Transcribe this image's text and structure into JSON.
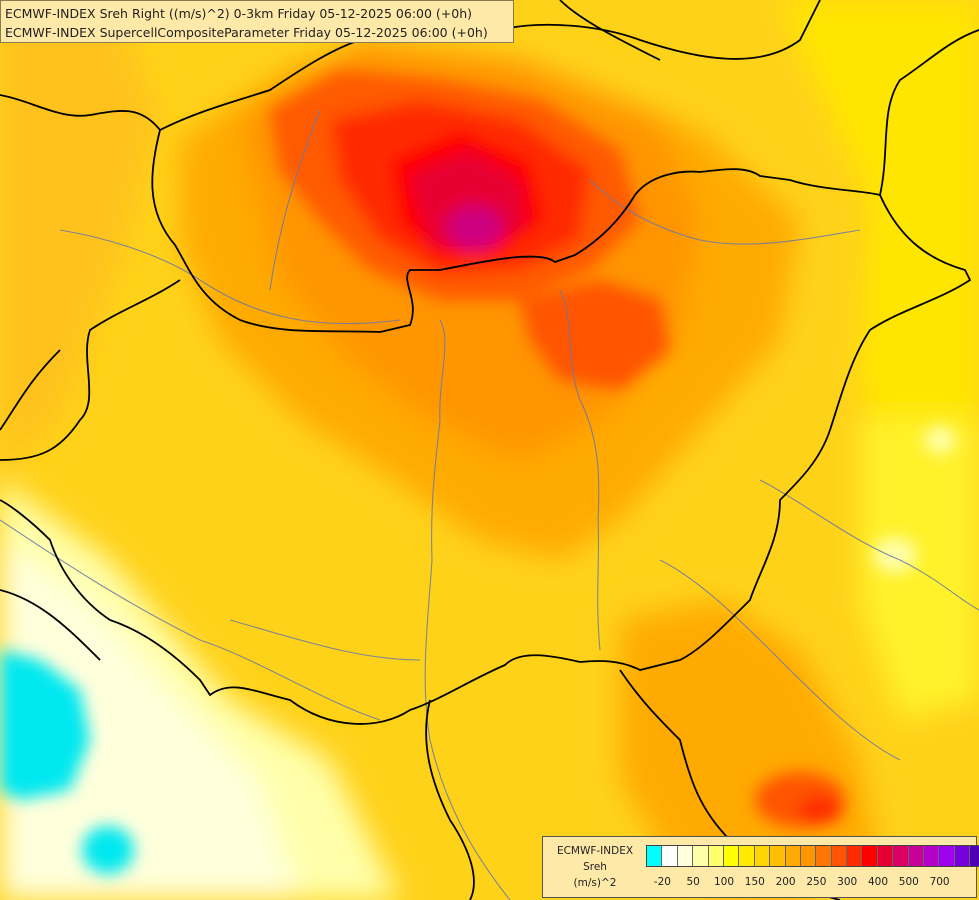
{
  "header": {
    "line1": "ECMWF-INDEX Sreh Right ((m/s)^2) 0-3km Friday 05-12-2025 06:00 (+0h)",
    "line2": "ECMWF-INDEX SupercellCompositeParameter Friday 05-12-2025 06:00 (+0h)"
  },
  "legend": {
    "source": "ECMWF-INDEX",
    "variable": "Sreh",
    "unit": "(m/s)^2",
    "colors": [
      "#00ffff",
      "#ffffff",
      "#ffffdc",
      "#ffffaa",
      "#ffff6e",
      "#ffff00",
      "#ffea00",
      "#ffd500",
      "#ffbf00",
      "#ffaa00",
      "#ff9500",
      "#ff7700",
      "#ff5500",
      "#ff2a00",
      "#ff0000",
      "#e60032",
      "#dc0064",
      "#c8009b",
      "#b400c8",
      "#a000f0",
      "#7800dc",
      "#5000b4",
      "#2d008c",
      "#000082"
    ],
    "tick_labels": [
      "-20",
      "50",
      "100",
      "150",
      "200",
      "250",
      "300",
      "400",
      "500",
      "700"
    ]
  }
}
